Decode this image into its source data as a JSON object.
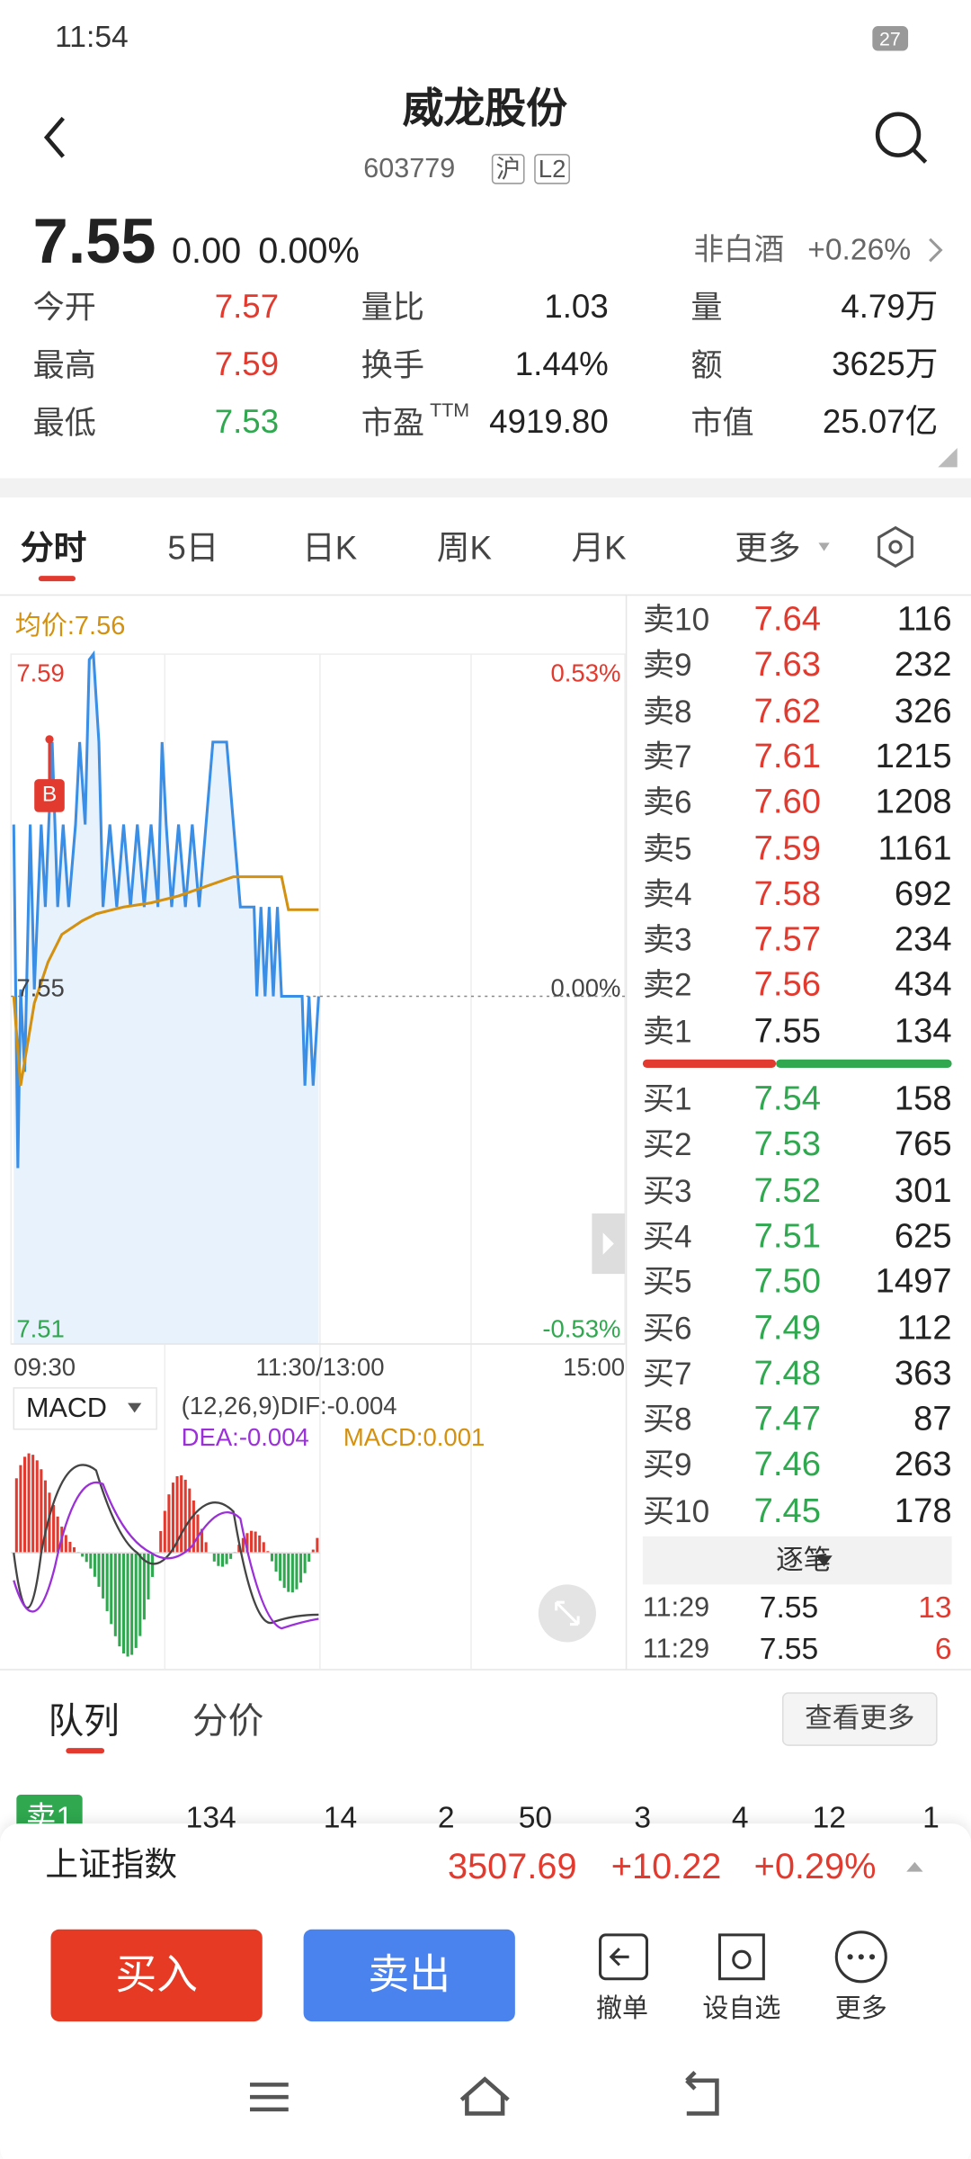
{
  "status": {
    "time": "11:54",
    "battery": "27"
  },
  "header": {
    "title": "威龙股份",
    "code": "603779",
    "tags": [
      "沪",
      "L2"
    ]
  },
  "quote": {
    "price": "7.55",
    "change": "0.00",
    "percent": "0.00%",
    "sector": "非白酒",
    "sector_percent": "+0.26%"
  },
  "stats": [
    [
      {
        "label": "今开",
        "value": "7.57"
      },
      {
        "label": "量比",
        "value": "1.03"
      },
      {
        "label": "量",
        "value": "4.79万"
      }
    ],
    [
      {
        "label": "最高",
        "value": "7.59"
      },
      {
        "label": "换手",
        "value": "1.44%"
      },
      {
        "label": "额",
        "value": "3625万"
      }
    ],
    [
      {
        "label": "最低",
        "value": "7.53"
      },
      {
        "label": "市盈",
        "sup": "TTM",
        "value": "4919.80"
      },
      {
        "label": "市值",
        "value": "25.07亿"
      }
    ]
  ],
  "tabs": [
    "分时",
    "5日",
    "日K",
    "周K",
    "月K",
    "更多"
  ],
  "chart": {
    "avg_label": "均价:7.56",
    "price_top": "7.59",
    "price_mid": "7.55",
    "price_bottom": "7.51",
    "pct_top": "0.53%",
    "pct_mid": "0.00%",
    "pct_bottom": "-0.53%",
    "times": [
      "09:30",
      "11:30/13:00",
      "15:00"
    ],
    "marker": "B",
    "macd": {
      "name": "MACD",
      "dif": "(12,26,9)DIF:-0.004",
      "dea": "DEA:-0.004",
      "macd": "MACD:0.001"
    }
  },
  "order_book": {
    "asks": [
      [
        "卖10",
        "7.64",
        "116"
      ],
      [
        "卖9",
        "7.63",
        "232"
      ],
      [
        "卖8",
        "7.62",
        "326"
      ],
      [
        "卖7",
        "7.61",
        "1215"
      ],
      [
        "卖6",
        "7.60",
        "1208"
      ],
      [
        "卖5",
        "7.59",
        "1161"
      ],
      [
        "卖4",
        "7.58",
        "692"
      ],
      [
        "卖3",
        "7.57",
        "234"
      ],
      [
        "卖2",
        "7.56",
        "434"
      ],
      [
        "卖1",
        "7.55",
        "134"
      ]
    ],
    "bids": [
      [
        "买1",
        "7.54",
        "158"
      ],
      [
        "买2",
        "7.53",
        "765"
      ],
      [
        "买3",
        "7.52",
        "301"
      ],
      [
        "买4",
        "7.51",
        "625"
      ],
      [
        "买5",
        "7.50",
        "1497"
      ],
      [
        "买6",
        "7.49",
        "112"
      ],
      [
        "买7",
        "7.48",
        "363"
      ],
      [
        "买8",
        "7.47",
        "87"
      ],
      [
        "买9",
        "7.46",
        "263"
      ],
      [
        "买10",
        "7.45",
        "178"
      ]
    ],
    "ticks_label": "逐笔",
    "trades": [
      [
        "11:29",
        "7.55",
        "13"
      ],
      [
        "11:29",
        "7.55",
        "6"
      ]
    ]
  },
  "bottom_tabs": {
    "tabs": [
      "队列",
      "分价"
    ],
    "more": "查看更多",
    "queue": [
      "卖1",
      "134",
      "14",
      "2",
      "50",
      "3",
      "4",
      "12",
      "1"
    ]
  },
  "index": {
    "name": "上证指数",
    "value": "3507.69",
    "change": "+10.22",
    "percent": "+0.29%"
  },
  "actions": {
    "buy": "买入",
    "sell": "卖出",
    "tools": [
      "撤单",
      "设自选",
      "更多"
    ]
  }
}
